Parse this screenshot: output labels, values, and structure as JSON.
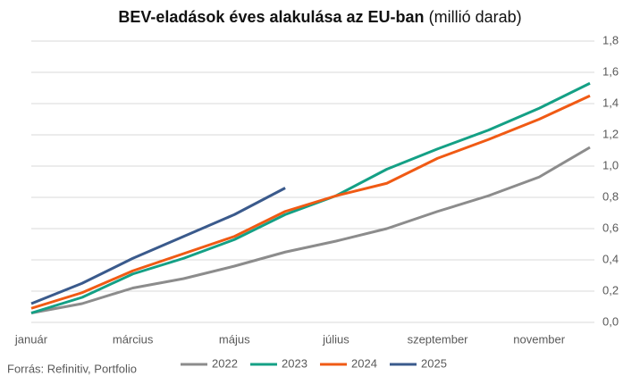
{
  "chart_data": {
    "type": "line",
    "title": "BEV-eladások éves alakulása az EU-ban",
    "subtitle": "(millió darab)",
    "source": "Forrás: Refinitiv, Portfolio",
    "categories": [
      "január",
      null,
      "március",
      null,
      "május",
      null,
      "július",
      null,
      "szeptember",
      null,
      "november",
      null
    ],
    "series": [
      {
        "name": "2022",
        "color": "#8c8c8c",
        "values": [
          0.06,
          0.12,
          0.22,
          0.28,
          0.36,
          0.45,
          0.52,
          0.6,
          0.71,
          0.81,
          0.93,
          1.12
        ]
      },
      {
        "name": "2023",
        "color": "#14a085",
        "values": [
          0.06,
          0.16,
          0.31,
          0.41,
          0.53,
          0.69,
          0.81,
          0.98,
          1.11,
          1.23,
          1.37,
          1.53
        ]
      },
      {
        "name": "2024",
        "color": "#f05a14",
        "values": [
          0.09,
          0.19,
          0.33,
          0.44,
          0.55,
          0.71,
          0.81,
          0.89,
          1.05,
          1.17,
          1.3,
          1.45
        ]
      },
      {
        "name": "2025",
        "color": "#3a5a8c",
        "values": [
          0.12,
          0.25,
          0.41,
          0.55,
          0.69,
          0.86,
          null,
          null,
          null,
          null,
          null,
          null
        ]
      }
    ],
    "ylim": [
      0,
      1.8
    ],
    "yticks": [
      {
        "value": 0,
        "label": "0,0"
      },
      {
        "value": 0.2,
        "label": "0,2"
      },
      {
        "value": 0.4,
        "label": "0,4"
      },
      {
        "value": 0.6,
        "label": "0,6"
      },
      {
        "value": 0.8,
        "label": "0,8"
      },
      {
        "value": 1.0,
        "label": "1,0"
      },
      {
        "value": 1.2,
        "label": "1,2"
      },
      {
        "value": 1.4,
        "label": "1,4"
      },
      {
        "value": 1.6,
        "label": "1,6"
      },
      {
        "value": 1.8,
        "label": "1,8"
      }
    ],
    "grid": true,
    "legend": "bottom"
  }
}
